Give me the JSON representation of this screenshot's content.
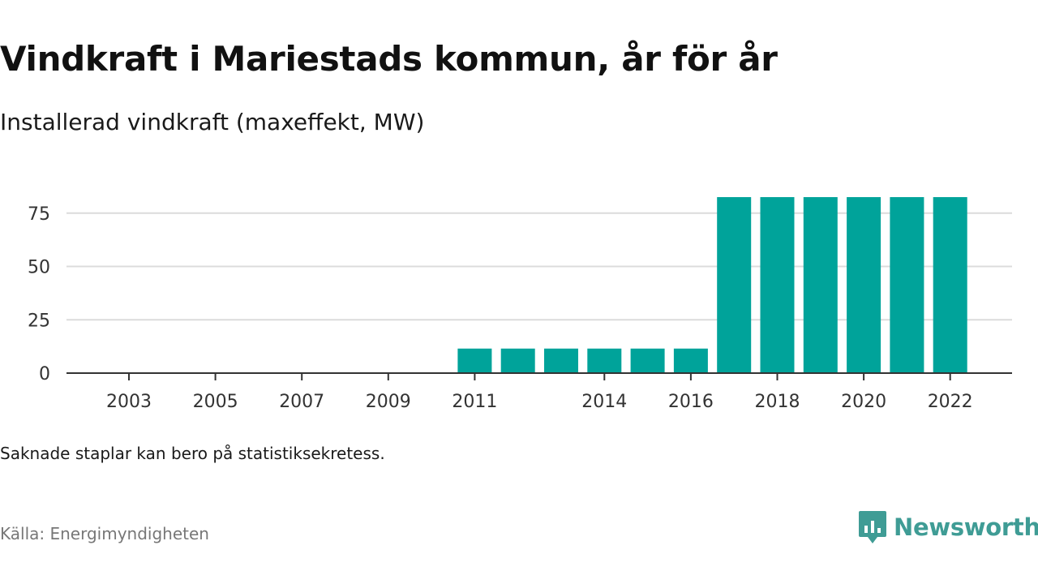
{
  "title": "Vindkraft i Mariestads kommun, år för år",
  "subtitle": "Installerad vindkraft (maxeffekt, MW)",
  "note": "Saknade staplar kan bero på statistiksekretess.",
  "source": "Källa: Energimyndigheten",
  "brand": {
    "name": "Newsworthy",
    "icon": "newsworthy-logo-icon",
    "color": "#3f9c95"
  },
  "chart_data": {
    "type": "bar",
    "title": "Vindkraft i Mariestads kommun, år för år",
    "subtitle": "Installerad vindkraft (maxeffekt, MW)",
    "xlabel": "",
    "ylabel": "",
    "categories": [
      "2003",
      "2004",
      "2005",
      "2006",
      "2007",
      "2008",
      "2009",
      "2010",
      "2011",
      "2012",
      "2013",
      "2014",
      "2015",
      "2016",
      "2017",
      "2018",
      "2019",
      "2020",
      "2021",
      "2022"
    ],
    "values": [
      0,
      0,
      0,
      0,
      0,
      0,
      0,
      0,
      11.5,
      11.5,
      11.5,
      11.5,
      11.5,
      11.5,
      82.5,
      82.5,
      82.5,
      82.5,
      82.5,
      82.5
    ],
    "x_tick_labels": [
      "2003",
      "2005",
      "2007",
      "2009",
      "2011",
      "2014",
      "2016",
      "2018",
      "2020",
      "2022"
    ],
    "y_ticks": [
      0,
      25,
      50,
      75
    ],
    "ylim": [
      0,
      82.5
    ],
    "grid": true,
    "bar_color": "#00a39a"
  }
}
